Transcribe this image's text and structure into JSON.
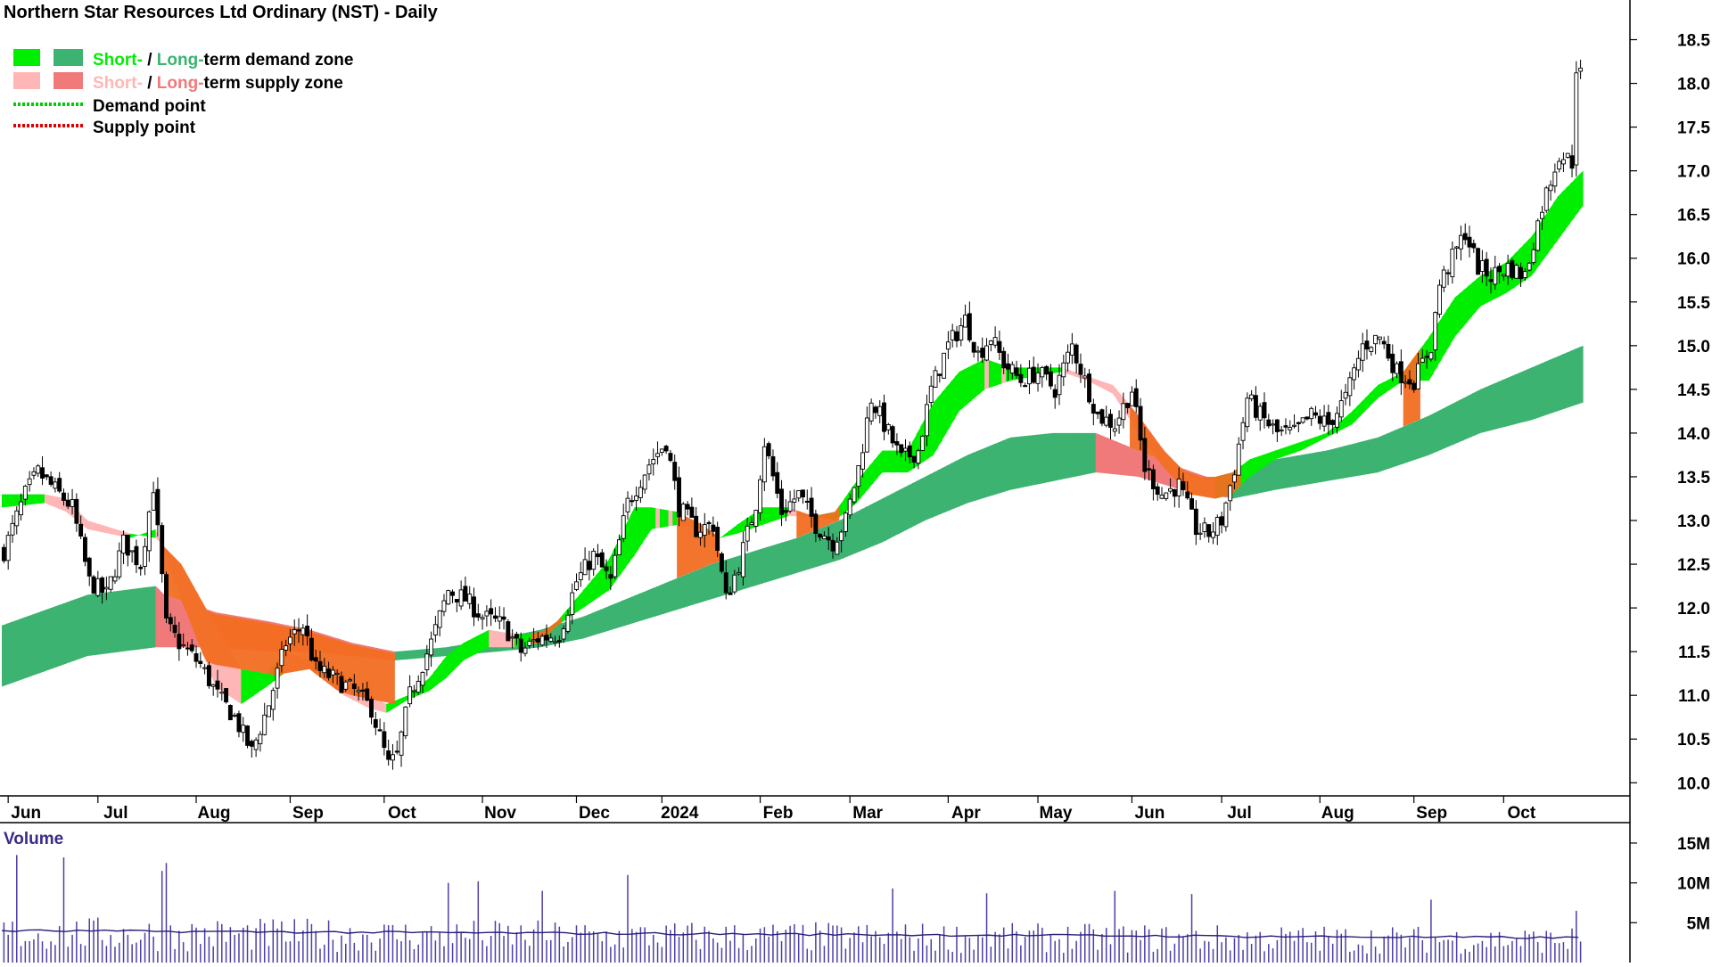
{
  "chart_data": {
    "type": "candlestick",
    "title": "Northern Star Resources Ltd Ordinary (NST) - Daily",
    "legend": {
      "placement": "top-left",
      "items": [
        {
          "parts": [
            {
              "text": "Short-",
              "color": "#00ee00"
            },
            {
              "text": " / ",
              "color": "#000000"
            },
            {
              "text": "Long-",
              "color": "#3cb371"
            },
            {
              "text": "term demand zone",
              "color": "#000000"
            }
          ],
          "swatches": [
            "#00ee00",
            "#3cb371"
          ]
        },
        {
          "parts": [
            {
              "text": "Short-",
              "color": "#ffb6b6"
            },
            {
              "text": " / ",
              "color": "#000000"
            },
            {
              "text": "Long-",
              "color": "#f07a7a"
            },
            {
              "text": "term supply zone",
              "color": "#000000"
            }
          ],
          "swatches": [
            "#ffb6b6",
            "#f07a7a"
          ]
        },
        {
          "parts": [
            {
              "text": "Demand point",
              "color": "#000000"
            }
          ],
          "dotted": "#00cc00"
        },
        {
          "parts": [
            {
              "text": "Supply point",
              "color": "#000000"
            }
          ],
          "dotted": "#dd0000"
        }
      ]
    },
    "colors": {
      "short_demand": "#00ee00",
      "long_demand": "#3cb371",
      "short_supply": "#ffb6b6",
      "long_supply": "#f07a7a",
      "overlap": "#f26d21",
      "volume": "#4b3fa8"
    },
    "y_axis": {
      "position": "right",
      "ylim": [
        9.85,
        18.75
      ],
      "ticks": [
        10.0,
        10.5,
        11.0,
        11.5,
        12.0,
        12.5,
        13.0,
        13.5,
        14.0,
        14.5,
        15.0,
        15.5,
        16.0,
        16.5,
        17.0,
        17.5,
        18.0,
        18.5
      ]
    },
    "x_axis": {
      "labels": [
        "Jun",
        "Jul",
        "Aug",
        "Sep",
        "Oct",
        "Nov",
        "Dec",
        "2024",
        "Feb",
        "Mar",
        "Apr",
        "May",
        "Jun",
        "Jul",
        "Aug",
        "Sep",
        "Oct"
      ],
      "label_index": [
        4,
        25,
        48,
        70,
        92,
        115,
        137,
        157,
        180,
        201,
        224,
        245,
        267,
        288,
        311,
        333,
        354
      ]
    },
    "trading_days": 370,
    "key_closes": [
      [
        0,
        12.65
      ],
      [
        5,
        13.3
      ],
      [
        8,
        13.55
      ],
      [
        12,
        13.35
      ],
      [
        16,
        13.15
      ],
      [
        20,
        12.3
      ],
      [
        24,
        12.15
      ],
      [
        28,
        12.75
      ],
      [
        32,
        12.5
      ],
      [
        35,
        13.4
      ],
      [
        38,
        11.8
      ],
      [
        41,
        11.6
      ],
      [
        46,
        11.35
      ],
      [
        50,
        11.0
      ],
      [
        54,
        10.75
      ],
      [
        58,
        10.35
      ],
      [
        62,
        10.9
      ],
      [
        66,
        11.6
      ],
      [
        70,
        11.8
      ],
      [
        73,
        11.3
      ],
      [
        77,
        11.2
      ],
      [
        82,
        11.05
      ],
      [
        86,
        10.85
      ],
      [
        90,
        10.2
      ],
      [
        92,
        10.3
      ],
      [
        95,
        11.0
      ],
      [
        100,
        11.6
      ],
      [
        104,
        12.2
      ],
      [
        108,
        12.1
      ],
      [
        112,
        11.9
      ],
      [
        117,
        11.8
      ],
      [
        121,
        11.5
      ],
      [
        125,
        11.65
      ],
      [
        130,
        11.7
      ],
      [
        134,
        12.3
      ],
      [
        138,
        12.6
      ],
      [
        142,
        12.3
      ],
      [
        146,
        13.2
      ],
      [
        151,
        13.65
      ],
      [
        155,
        13.9
      ],
      [
        158,
        13.15
      ],
      [
        162,
        12.9
      ],
      [
        166,
        12.95
      ],
      [
        169,
        12.1
      ],
      [
        172,
        12.5
      ],
      [
        176,
        13.2
      ],
      [
        178,
        13.9
      ],
      [
        182,
        13.1
      ],
      [
        186,
        13.3
      ],
      [
        190,
        12.95
      ],
      [
        194,
        12.75
      ],
      [
        197,
        13.0
      ],
      [
        200,
        13.6
      ],
      [
        203,
        14.4
      ],
      [
        206,
        14.1
      ],
      [
        210,
        13.7
      ],
      [
        214,
        13.8
      ],
      [
        217,
        14.5
      ],
      [
        221,
        15.0
      ],
      [
        225,
        15.3
      ],
      [
        228,
        14.9
      ],
      [
        231,
        15.1
      ],
      [
        234,
        14.8
      ],
      [
        238,
        14.6
      ],
      [
        242,
        14.7
      ],
      [
        246,
        14.5
      ],
      [
        250,
        15.0
      ],
      [
        253,
        14.6
      ],
      [
        256,
        14.2
      ],
      [
        260,
        14.1
      ],
      [
        264,
        14.5
      ],
      [
        267,
        13.6
      ],
      [
        271,
        13.3
      ],
      [
        275,
        13.4
      ],
      [
        279,
        12.9
      ],
      [
        282,
        12.85
      ],
      [
        285,
        13.0
      ],
      [
        288,
        13.6
      ],
      [
        291,
        14.4
      ],
      [
        294,
        14.2
      ],
      [
        298,
        14.0
      ],
      [
        302,
        14.0
      ],
      [
        306,
        14.2
      ],
      [
        310,
        14.1
      ],
      [
        314,
        14.4
      ],
      [
        318,
        15.0
      ],
      [
        322,
        15.1
      ],
      [
        326,
        14.7
      ],
      [
        330,
        14.6
      ],
      [
        334,
        15.0
      ],
      [
        336,
        15.7
      ],
      [
        339,
        16.0
      ],
      [
        342,
        16.3
      ],
      [
        345,
        15.9
      ],
      [
        348,
        15.8
      ],
      [
        352,
        15.9
      ],
      [
        356,
        15.8
      ],
      [
        360,
        16.6
      ],
      [
        364,
        17.2
      ],
      [
        367,
        17.1
      ],
      [
        368,
        18.2
      ],
      [
        370,
        18.0
      ]
    ],
    "short_zone": [
      [
        0,
        13.3,
        13.15
      ],
      [
        10,
        13.3,
        13.2
      ],
      [
        15,
        13.25,
        13.1
      ],
      [
        20,
        13.0,
        12.9
      ],
      [
        30,
        12.85,
        12.8
      ],
      [
        36,
        12.8,
        12.9
      ],
      [
        42,
        12.5,
        12.1
      ],
      [
        50,
        11.8,
        11.1
      ],
      [
        56,
        11.3,
        10.9
      ],
      [
        62,
        11.25,
        11.1
      ],
      [
        66,
        11.5,
        11.25
      ],
      [
        72,
        11.4,
        11.3
      ],
      [
        80,
        11.15,
        11.0
      ],
      [
        86,
        11.0,
        10.85
      ],
      [
        90,
        10.9,
        10.8
      ],
      [
        95,
        11.0,
        10.95
      ],
      [
        100,
        11.2,
        11.05
      ],
      [
        104,
        11.45,
        11.2
      ],
      [
        108,
        11.6,
        11.4
      ],
      [
        114,
        11.75,
        11.55
      ],
      [
        120,
        11.7,
        11.55
      ],
      [
        126,
        11.7,
        11.6
      ],
      [
        130,
        11.85,
        11.8
      ],
      [
        136,
        12.2,
        12.0
      ],
      [
        142,
        12.55,
        12.2
      ],
      [
        148,
        13.15,
        12.6
      ],
      [
        152,
        13.15,
        12.9
      ],
      [
        158,
        13.1,
        12.95
      ],
      [
        164,
        12.95,
        12.9
      ],
      [
        168,
        12.8,
        12.8
      ],
      [
        172,
        12.95,
        12.85
      ],
      [
        178,
        13.15,
        12.95
      ],
      [
        184,
        13.15,
        13.05
      ],
      [
        190,
        13.05,
        13.05
      ],
      [
        195,
        13.1,
        13.0
      ],
      [
        200,
        13.45,
        13.2
      ],
      [
        206,
        13.8,
        13.55
      ],
      [
        212,
        13.8,
        13.55
      ],
      [
        218,
        14.35,
        13.75
      ],
      [
        224,
        14.7,
        14.25
      ],
      [
        230,
        14.85,
        14.5
      ],
      [
        236,
        14.75,
        14.6
      ],
      [
        242,
        14.75,
        14.65
      ],
      [
        248,
        14.75,
        14.7
      ],
      [
        254,
        14.65,
        14.6
      ],
      [
        260,
        14.55,
        14.45
      ],
      [
        266,
        14.2,
        14.0
      ],
      [
        272,
        13.8,
        13.6
      ],
      [
        278,
        13.5,
        13.3
      ],
      [
        284,
        13.5,
        13.25
      ],
      [
        288,
        13.55,
        13.3
      ],
      [
        292,
        13.7,
        13.5
      ],
      [
        298,
        13.8,
        13.7
      ],
      [
        304,
        13.9,
        13.8
      ],
      [
        310,
        14.0,
        13.95
      ],
      [
        316,
        14.25,
        14.1
      ],
      [
        322,
        14.55,
        14.4
      ],
      [
        328,
        14.7,
        14.6
      ],
      [
        334,
        15.1,
        14.6
      ],
      [
        340,
        15.55,
        15.1
      ],
      [
        346,
        15.8,
        15.45
      ],
      [
        352,
        15.95,
        15.6
      ],
      [
        358,
        16.25,
        15.8
      ],
      [
        364,
        16.7,
        16.2
      ],
      [
        370,
        17.0,
        16.6
      ]
    ],
    "long_zone": [
      [
        0,
        11.8,
        11.1
      ],
      [
        20,
        12.15,
        11.45
      ],
      [
        36,
        12.25,
        11.55
      ],
      [
        38,
        12.15,
        11.55
      ],
      [
        50,
        11.95,
        11.55
      ],
      [
        62,
        11.85,
        11.5
      ],
      [
        72,
        11.75,
        11.5
      ],
      [
        82,
        11.6,
        11.45
      ],
      [
        92,
        11.5,
        11.4
      ],
      [
        104,
        11.55,
        11.45
      ],
      [
        116,
        11.65,
        11.5
      ],
      [
        126,
        11.75,
        11.55
      ],
      [
        136,
        11.9,
        11.65
      ],
      [
        146,
        12.1,
        11.8
      ],
      [
        156,
        12.3,
        11.95
      ],
      [
        166,
        12.5,
        12.1
      ],
      [
        176,
        12.65,
        12.25
      ],
      [
        186,
        12.8,
        12.4
      ],
      [
        196,
        13.0,
        12.55
      ],
      [
        206,
        13.25,
        12.75
      ],
      [
        216,
        13.5,
        13.0
      ],
      [
        226,
        13.75,
        13.2
      ],
      [
        236,
        13.95,
        13.35
      ],
      [
        246,
        14.0,
        13.45
      ],
      [
        256,
        14.0,
        13.55
      ],
      [
        266,
        13.8,
        13.5
      ],
      [
        276,
        13.6,
        13.35
      ],
      [
        288,
        13.4,
        13.25
      ],
      [
        298,
        13.7,
        13.35
      ],
      [
        310,
        13.8,
        13.45
      ],
      [
        322,
        13.95,
        13.55
      ],
      [
        334,
        14.2,
        13.75
      ],
      [
        346,
        14.5,
        14.0
      ],
      [
        358,
        14.75,
        14.15
      ],
      [
        370,
        15.0,
        14.35
      ]
    ],
    "volume": {
      "title": "Volume",
      "ylim": [
        0,
        16000000
      ],
      "ticks": [
        5000000,
        10000000,
        15000000
      ],
      "tick_labels": [
        "5M",
        "10M",
        "15M"
      ],
      "avg_start": 4000000,
      "avg_end": 3100000,
      "spikes": [
        [
          3,
          13500000
        ],
        [
          14,
          13200000
        ],
        [
          37,
          11500000
        ],
        [
          38,
          12500000
        ],
        [
          104,
          10000000
        ],
        [
          111,
          10200000
        ],
        [
          126,
          9000000
        ],
        [
          146,
          11000000
        ],
        [
          208,
          9300000
        ],
        [
          230,
          8700000
        ],
        [
          260,
          9000000
        ],
        [
          278,
          8600000
        ],
        [
          334,
          7900000
        ],
        [
          368,
          6500000
        ]
      ]
    }
  }
}
